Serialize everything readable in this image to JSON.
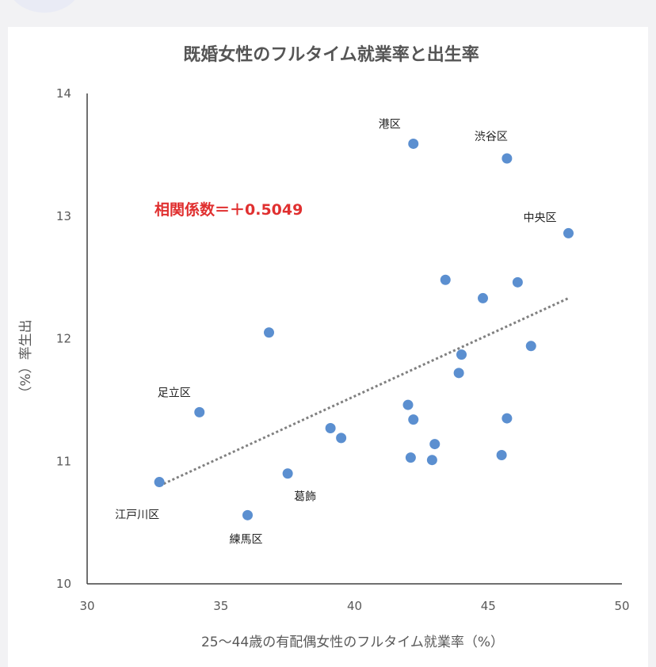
{
  "chart_data": {
    "type": "scatter",
    "title": "既婚女性のフルタイム就業率と出生率",
    "xlabel": "25〜44歳の有配偶女性のフルタイム就業率（%）",
    "ylabel": "（%）率生出",
    "xlim": [
      30,
      50
    ],
    "ylim": [
      10,
      14
    ],
    "xticks": [
      "30",
      "35",
      "40",
      "45",
      "50"
    ],
    "yticks": [
      "10",
      "11",
      "12",
      "13",
      "14"
    ],
    "annotation": "相関係数＝＋0.5049",
    "marker_color": "#5b8fd0",
    "trend_color": "#808080",
    "annotation_color": "#e03030",
    "trendline": {
      "x": [
        32.7,
        48.0
      ],
      "y": [
        10.8,
        12.33
      ]
    },
    "points": [
      {
        "x": 32.7,
        "y": 10.83,
        "label": "江戸川区"
      },
      {
        "x": 34.2,
        "y": 11.4,
        "label": "足立区"
      },
      {
        "x": 36.0,
        "y": 10.56,
        "label": "練馬区"
      },
      {
        "x": 36.8,
        "y": 12.05,
        "label": ""
      },
      {
        "x": 37.5,
        "y": 10.9,
        "label": "葛飾"
      },
      {
        "x": 39.1,
        "y": 11.27,
        "label": ""
      },
      {
        "x": 39.5,
        "y": 11.19,
        "label": ""
      },
      {
        "x": 42.0,
        "y": 11.46,
        "label": ""
      },
      {
        "x": 42.1,
        "y": 11.03,
        "label": ""
      },
      {
        "x": 42.2,
        "y": 11.34,
        "label": ""
      },
      {
        "x": 42.2,
        "y": 13.59,
        "label": "港区"
      },
      {
        "x": 42.9,
        "y": 11.01,
        "label": ""
      },
      {
        "x": 43.0,
        "y": 11.14,
        "label": ""
      },
      {
        "x": 43.4,
        "y": 12.48,
        "label": ""
      },
      {
        "x": 43.9,
        "y": 11.72,
        "label": ""
      },
      {
        "x": 44.0,
        "y": 11.87,
        "label": ""
      },
      {
        "x": 44.8,
        "y": 12.33,
        "label": ""
      },
      {
        "x": 45.5,
        "y": 11.05,
        "label": ""
      },
      {
        "x": 45.7,
        "y": 13.47,
        "label": "渋谷区"
      },
      {
        "x": 45.7,
        "y": 11.35,
        "label": ""
      },
      {
        "x": 46.1,
        "y": 12.46,
        "label": ""
      },
      {
        "x": 46.6,
        "y": 11.94,
        "label": ""
      },
      {
        "x": 48.0,
        "y": 12.86,
        "label": "中央区"
      }
    ]
  }
}
